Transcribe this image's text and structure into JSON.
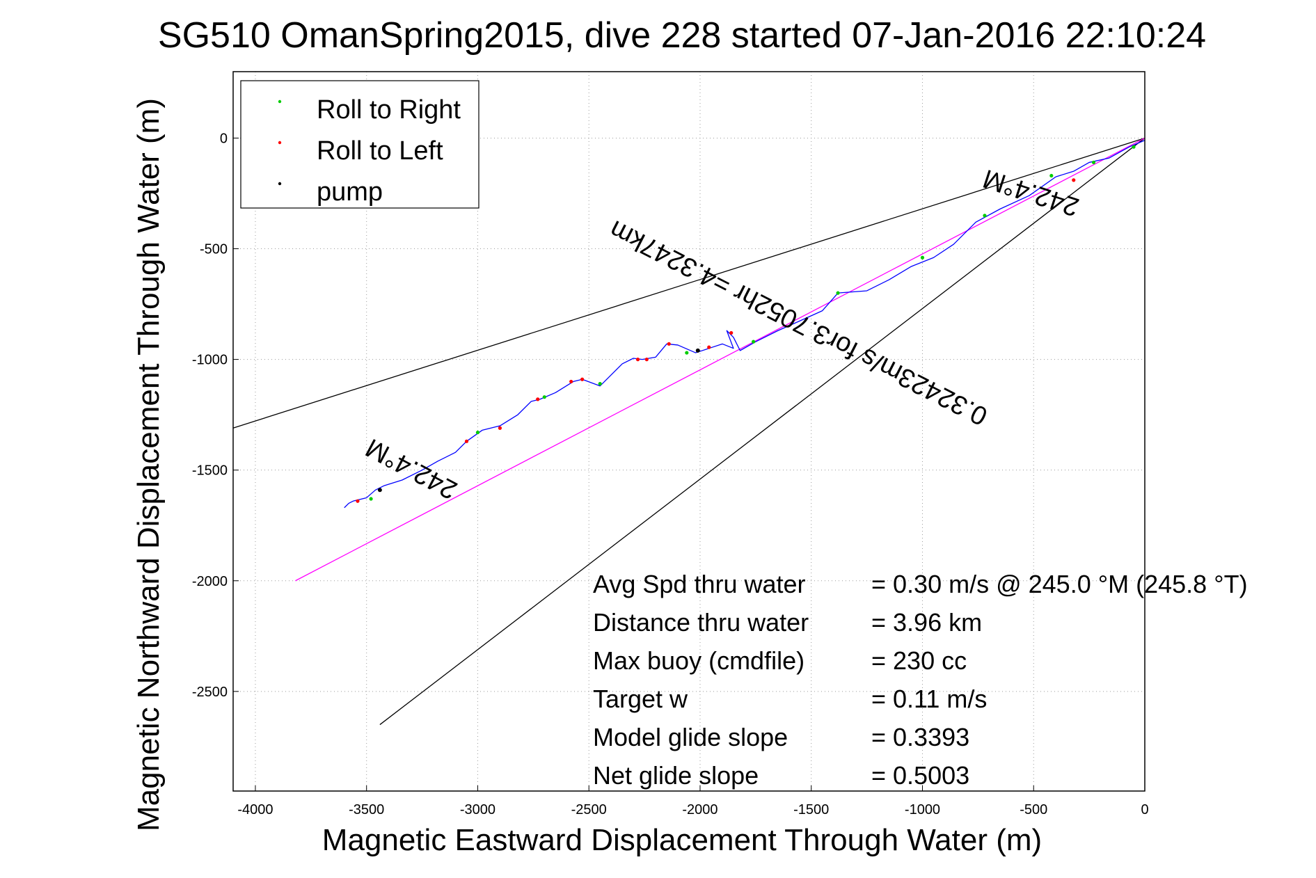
{
  "chart_data": {
    "type": "line",
    "title": "SG510 OmanSpring2015, dive 228 started 07-Jan-2016 22:10:24",
    "xlabel": "Magnetic Eastward Displacement Through Water (m)",
    "ylabel": "Magnetic Northward Displacement Through Water (m)",
    "xlim": [
      -4100,
      0
    ],
    "ylim": [
      -2950,
      300
    ],
    "xticks": [
      -4000,
      -3500,
      -3000,
      -2500,
      -2000,
      -1500,
      -1000,
      -500,
      0
    ],
    "yticks": [
      0,
      -500,
      -1000,
      -1500,
      -2000,
      -2500
    ],
    "grid": true,
    "legend": {
      "placement": "top-left",
      "entries": [
        {
          "label": "Roll to Right",
          "color": "#00cc00"
        },
        {
          "label": "Roll to Left",
          "color": "#ff0000"
        },
        {
          "label": "pump",
          "color": "#000000"
        }
      ]
    },
    "track": {
      "color": "#0000ff",
      "x": [
        0,
        -70,
        -160,
        -250,
        -320,
        -400,
        -520,
        -650,
        -760,
        -860,
        -950,
        -1050,
        -1150,
        -1250,
        -1380,
        -1450,
        -1560,
        -1650,
        -1750,
        -1820,
        -1850,
        -1880,
        -1850,
        -1900,
        -1960,
        -2020,
        -2100,
        -2150,
        -2200,
        -2260,
        -2300,
        -2350,
        -2450,
        -2530,
        -2570,
        -2650,
        -2720,
        -2760,
        -2820,
        -2900,
        -2980,
        -3050,
        -3100,
        -3180,
        -3250,
        -3340,
        -3420,
        -3460,
        -3500,
        -3560,
        -3580,
        -3600
      ],
      "y": [
        -10,
        -40,
        -90,
        -110,
        -150,
        -175,
        -260,
        -320,
        -380,
        -480,
        -540,
        -580,
        -640,
        -690,
        -700,
        -780,
        -830,
        -870,
        -920,
        -960,
        -900,
        -870,
        -950,
        -930,
        -950,
        -970,
        -935,
        -930,
        -990,
        -1000,
        -995,
        -1020,
        -1120,
        -1090,
        -1100,
        -1150,
        -1180,
        -1190,
        -1250,
        -1300,
        -1320,
        -1370,
        -1420,
        -1460,
        -1500,
        -1545,
        -1570,
        -1590,
        -1625,
        -1640,
        -1650,
        -1670
      ]
    },
    "roll_right_points": {
      "color": "#00cc00",
      "x": [
        -50,
        -230,
        -420,
        -720,
        -1000,
        -1380,
        -1760,
        -2060,
        -2450,
        -2700,
        -3000,
        -3480
      ],
      "y": [
        -40,
        -110,
        -170,
        -350,
        -540,
        -700,
        -920,
        -970,
        -1110,
        -1170,
        -1330,
        -1630
      ]
    },
    "roll_left_points": {
      "color": "#ff0000",
      "x": [
        -320,
        -1860,
        -1960,
        -2140,
        -2240,
        -2280,
        -2530,
        -2580,
        -2730,
        -2900,
        -3050,
        -3540
      ],
      "y": [
        -190,
        -880,
        -945,
        -930,
        -1000,
        -1000,
        -1090,
        -1100,
        -1180,
        -1310,
        -1370,
        -1640
      ]
    },
    "pump_points": {
      "color": "#000000",
      "x": [
        -2010,
        -3440
      ],
      "y": [
        -960,
        -1590
      ]
    },
    "reference_lines": [
      {
        "name": "",
        "color": "#000000",
        "x": [
          0,
          -4100
        ],
        "y": [
          0,
          -1310
        ]
      },
      {
        "name": "",
        "color": "#000000",
        "x": [
          0,
          -3440
        ],
        "y": [
          0,
          -2650
        ]
      },
      {
        "name": "",
        "color": "#ff00ff",
        "x": [
          0,
          -3820
        ],
        "y": [
          0,
          -2000
        ]
      }
    ],
    "annotations": [
      {
        "text": "242.4°M",
        "x": -3280,
        "y": -1460,
        "rotation_deg": 208
      },
      {
        "text": "242.4°M",
        "x": -500,
        "y": -210,
        "rotation_deg": 198
      },
      {
        "text": "0.32423m/s for3.7052hr =4.3247km",
        "x": -1540,
        "y": -800,
        "rotation_deg": 207
      }
    ],
    "info": [
      {
        "label": "Avg Spd thru water",
        "value": "=  0.30 m/s @ 245.0 °M (245.8 °T)"
      },
      {
        "label": "Distance thru water",
        "value": "=  3.96 km"
      },
      {
        "label": "Max buoy (cmdfile)",
        "value": "= 230 cc"
      },
      {
        "label": "Target w",
        "value": "= 0.11 m/s"
      },
      {
        "label": "Model glide slope",
        "value": "= 0.3393"
      },
      {
        "label": "Net glide slope",
        "value": "= 0.5003"
      }
    ]
  }
}
